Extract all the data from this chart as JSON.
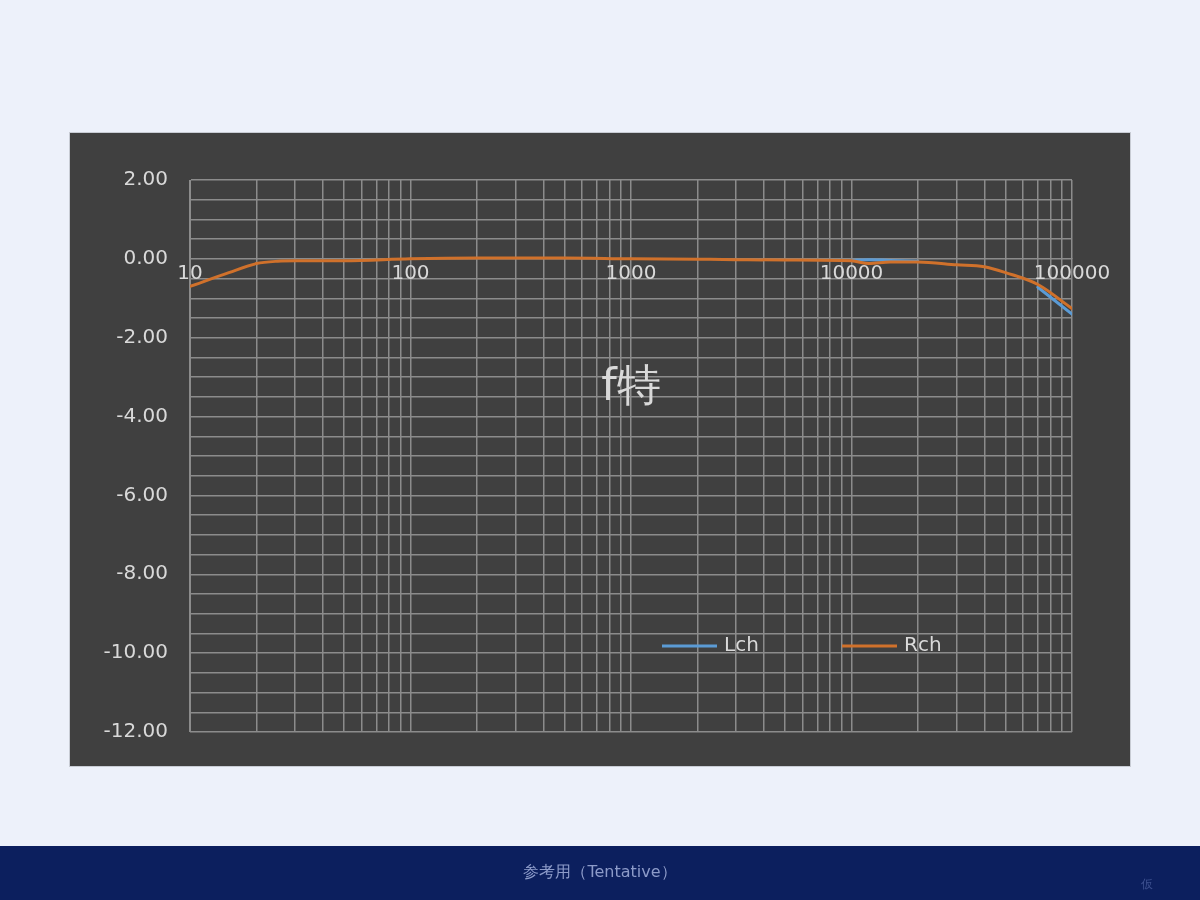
{
  "chart_data": {
    "type": "line",
    "title": "f特",
    "x": [
      10,
      15,
      20,
      25,
      30,
      50,
      100,
      200,
      300,
      500,
      1000,
      2000,
      3000,
      5000,
      10000,
      12000,
      15000,
      20000,
      30000,
      40000,
      50000,
      70000,
      100000
    ],
    "series": [
      {
        "name": "Lch",
        "color": "#5b9bd5",
        "values": [
          null,
          null,
          null,
          null,
          null,
          null,
          null,
          null,
          null,
          null,
          null,
          null,
          null,
          null,
          -0.04,
          -0.02,
          -0.04,
          -0.06,
          null,
          null,
          null,
          -0.72,
          -1.4
        ]
      },
      {
        "name": "Rch",
        "color": "#d0712b",
        "values": [
          -0.7,
          -0.35,
          -0.12,
          -0.06,
          -0.05,
          -0.05,
          0,
          0.02,
          0.02,
          0.02,
          0,
          -0.01,
          -0.02,
          -0.03,
          -0.05,
          -0.12,
          -0.08,
          -0.08,
          -0.15,
          -0.2,
          -0.35,
          -0.65,
          -1.26
        ]
      }
    ],
    "log": "x",
    "xlim": [
      10,
      100000
    ],
    "xticks": [
      10,
      {
        "value": 20,
        "label": null
      },
      {
        "value": 30,
        "label": null
      },
      {
        "value": 40,
        "label": null
      },
      {
        "value": 50,
        "label": null
      },
      {
        "value": 60,
        "label": null
      },
      {
        "value": 70,
        "label": null
      },
      {
        "value": 80,
        "label": null
      },
      {
        "value": 90,
        "label": null
      },
      100,
      {
        "value": 200,
        "label": null
      },
      {
        "value": 300,
        "label": null
      },
      {
        "value": 400,
        "label": null
      },
      {
        "value": 500,
        "label": null
      },
      {
        "value": 600,
        "label": null
      },
      {
        "value": 700,
        "label": null
      },
      {
        "value": 800,
        "label": null
      },
      {
        "value": 900,
        "label": null
      },
      1000,
      {
        "value": 2000,
        "label": null
      },
      {
        "value": 3000,
        "label": null
      },
      {
        "value": 4000,
        "label": null
      },
      {
        "value": 5000,
        "label": null
      },
      {
        "value": 6000,
        "label": null
      },
      {
        "value": 7000,
        "label": null
      },
      {
        "value": 8000,
        "label": null
      },
      {
        "value": 9000,
        "label": null
      },
      10000,
      {
        "value": 20000,
        "label": null
      },
      {
        "value": 30000,
        "label": null
      },
      {
        "value": 40000,
        "label": null
      },
      {
        "value": 50000,
        "label": null
      },
      {
        "value": 60000,
        "label": null
      },
      {
        "value": 70000,
        "label": null
      },
      {
        "value": 80000,
        "label": null
      },
      {
        "value": 90000,
        "label": null
      },
      100000
    ],
    "ylim": [
      -12,
      2
    ],
    "yticks": [
      {
        "value": -12,
        "label": "-12.00"
      },
      {
        "value": -11.5,
        "label": null
      },
      {
        "value": -11,
        "label": null
      },
      {
        "value": -10.5,
        "label": null
      },
      {
        "value": -10,
        "label": "-10.00"
      },
      {
        "value": -9.5,
        "label": null
      },
      {
        "value": -9,
        "label": null
      },
      {
        "value": -8.5,
        "label": null
      },
      {
        "value": -8,
        "label": "-8.00"
      },
      {
        "value": -7.5,
        "label": null
      },
      {
        "value": -7,
        "label": null
      },
      {
        "value": -6.5,
        "label": null
      },
      {
        "value": -6,
        "label": "-6.00"
      },
      {
        "value": -5.5,
        "label": null
      },
      {
        "value": -5,
        "label": null
      },
      {
        "value": -4.5,
        "label": null
      },
      {
        "value": -4,
        "label": "-4.00"
      },
      {
        "value": -3.5,
        "label": null
      },
      {
        "value": -3,
        "label": null
      },
      {
        "value": -2.5,
        "label": null
      },
      {
        "value": -2,
        "label": "-2.00"
      },
      {
        "value": -1.5,
        "label": null
      },
      {
        "value": -1,
        "label": null
      },
      {
        "value": -0.5,
        "label": null
      },
      {
        "value": 0,
        "label": "0.00"
      },
      {
        "value": 0.5,
        "label": null
      },
      {
        "value": 1,
        "label": null
      },
      {
        "value": 1.5,
        "label": null
      },
      {
        "value": 2,
        "label": "2.00"
      }
    ],
    "grid": true,
    "legend": "bottom right",
    "marker": "none",
    "line_style": "solid",
    "annotations": [
      "参考用（Tentative）",
      "仮"
    ]
  }
}
